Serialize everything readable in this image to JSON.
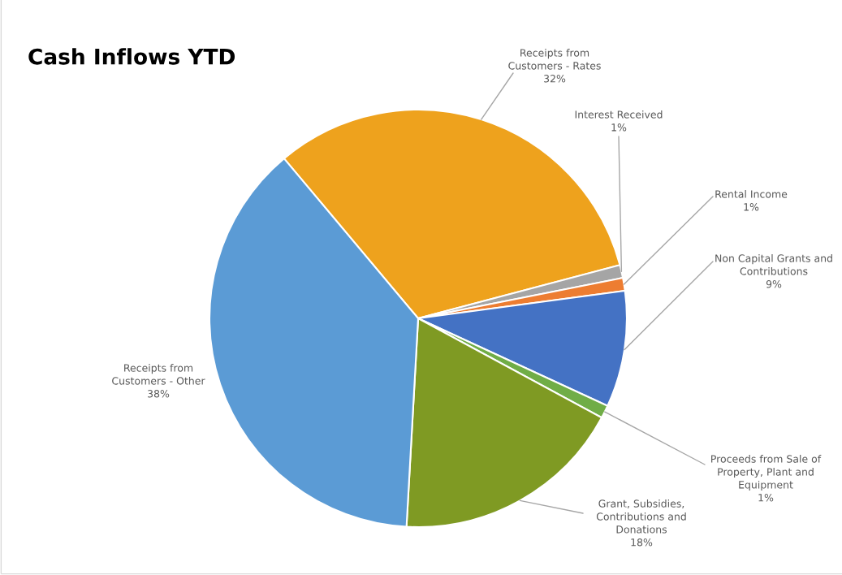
{
  "chart_data": {
    "type": "pie",
    "title": "Cash Inflows YTD",
    "categories": [
      "Receipts from\nCustomers - Rates",
      "Interest Received",
      "Rental Income",
      "Non Capital Grants and\nContributions",
      "Proceeds from Sale of\nProperty, Plant and\nEquipment",
      "Grant, Subsidies,\nContributions and\nDonations",
      "Receipts from\nCustomers - Other"
    ],
    "values": [
      32,
      1,
      1,
      9,
      1,
      18,
      38
    ],
    "value_labels": [
      "32%",
      "1%",
      "1%",
      "9%",
      "1%",
      "18%",
      "38%"
    ],
    "colors": [
      "#eea21d",
      "#a5a5a5",
      "#ed7d31",
      "#4472c4",
      "#70ad47",
      "#7f9a23",
      "#5b9bd5"
    ],
    "legend": false
  }
}
